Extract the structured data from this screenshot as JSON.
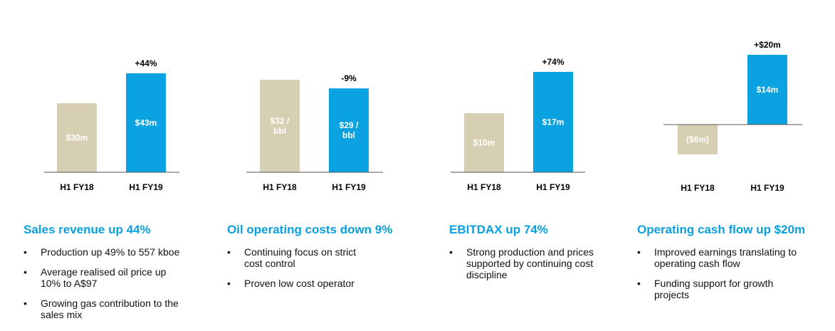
{
  "colors": {
    "prior": "#d6cfb3",
    "current": "#0aa2e0",
    "axis": "#555555",
    "heading": "#0a9fe0"
  },
  "panels": [
    {
      "heading": "Sales revenue up 44%",
      "bullets": [
        "Production up 49% to 557 kboe",
        "Average realised oil price up 10% to A$97",
        "Growing gas contribution to the sales mix"
      ]
    },
    {
      "heading": "Oil operating costs down 9%",
      "bullets": [
        "Continuing focus on strict cost control",
        "Proven low cost operator"
      ]
    },
    {
      "heading": "EBITDAX up 74%",
      "bullets": [
        "Strong production and prices supported by continuing cost discipline"
      ]
    },
    {
      "heading": "Operating cash flow up $20m",
      "bullets": [
        "Improved earnings translating to operating cash flow",
        "Funding support for growth projects"
      ]
    }
  ],
  "chart_data": [
    {
      "type": "bar",
      "title": "",
      "unit": "A$m",
      "categories": [
        "H1 FY18",
        "H1 FY19"
      ],
      "values": [
        30,
        43
      ],
      "value_labels": [
        "$30m",
        "$43m"
      ],
      "change_label": "+44%",
      "ylim": [
        0,
        43
      ]
    },
    {
      "type": "bar",
      "title": "",
      "unit": "A$/bbl",
      "categories": [
        "H1 FY18",
        "H1 FY19"
      ],
      "values": [
        32,
        29
      ],
      "value_labels": [
        "$32 / bbl",
        "$29 / bbl"
      ],
      "change_label": "-9%",
      "ylim": [
        0,
        32
      ]
    },
    {
      "type": "bar",
      "title": "",
      "unit": "A$m",
      "categories": [
        "H1 FY18",
        "H1 FY19"
      ],
      "values": [
        10,
        17
      ],
      "value_labels": [
        "$10m",
        "$17m"
      ],
      "change_label": "+74%",
      "ylim": [
        0,
        17
      ]
    },
    {
      "type": "bar",
      "title": "",
      "unit": "A$m",
      "categories": [
        "H1 FY18",
        "H1 FY19"
      ],
      "values": [
        -6,
        14
      ],
      "value_labels": [
        "($6m)",
        "$14m"
      ],
      "change_label": "+$20m",
      "ylim": [
        -6,
        14
      ]
    }
  ]
}
